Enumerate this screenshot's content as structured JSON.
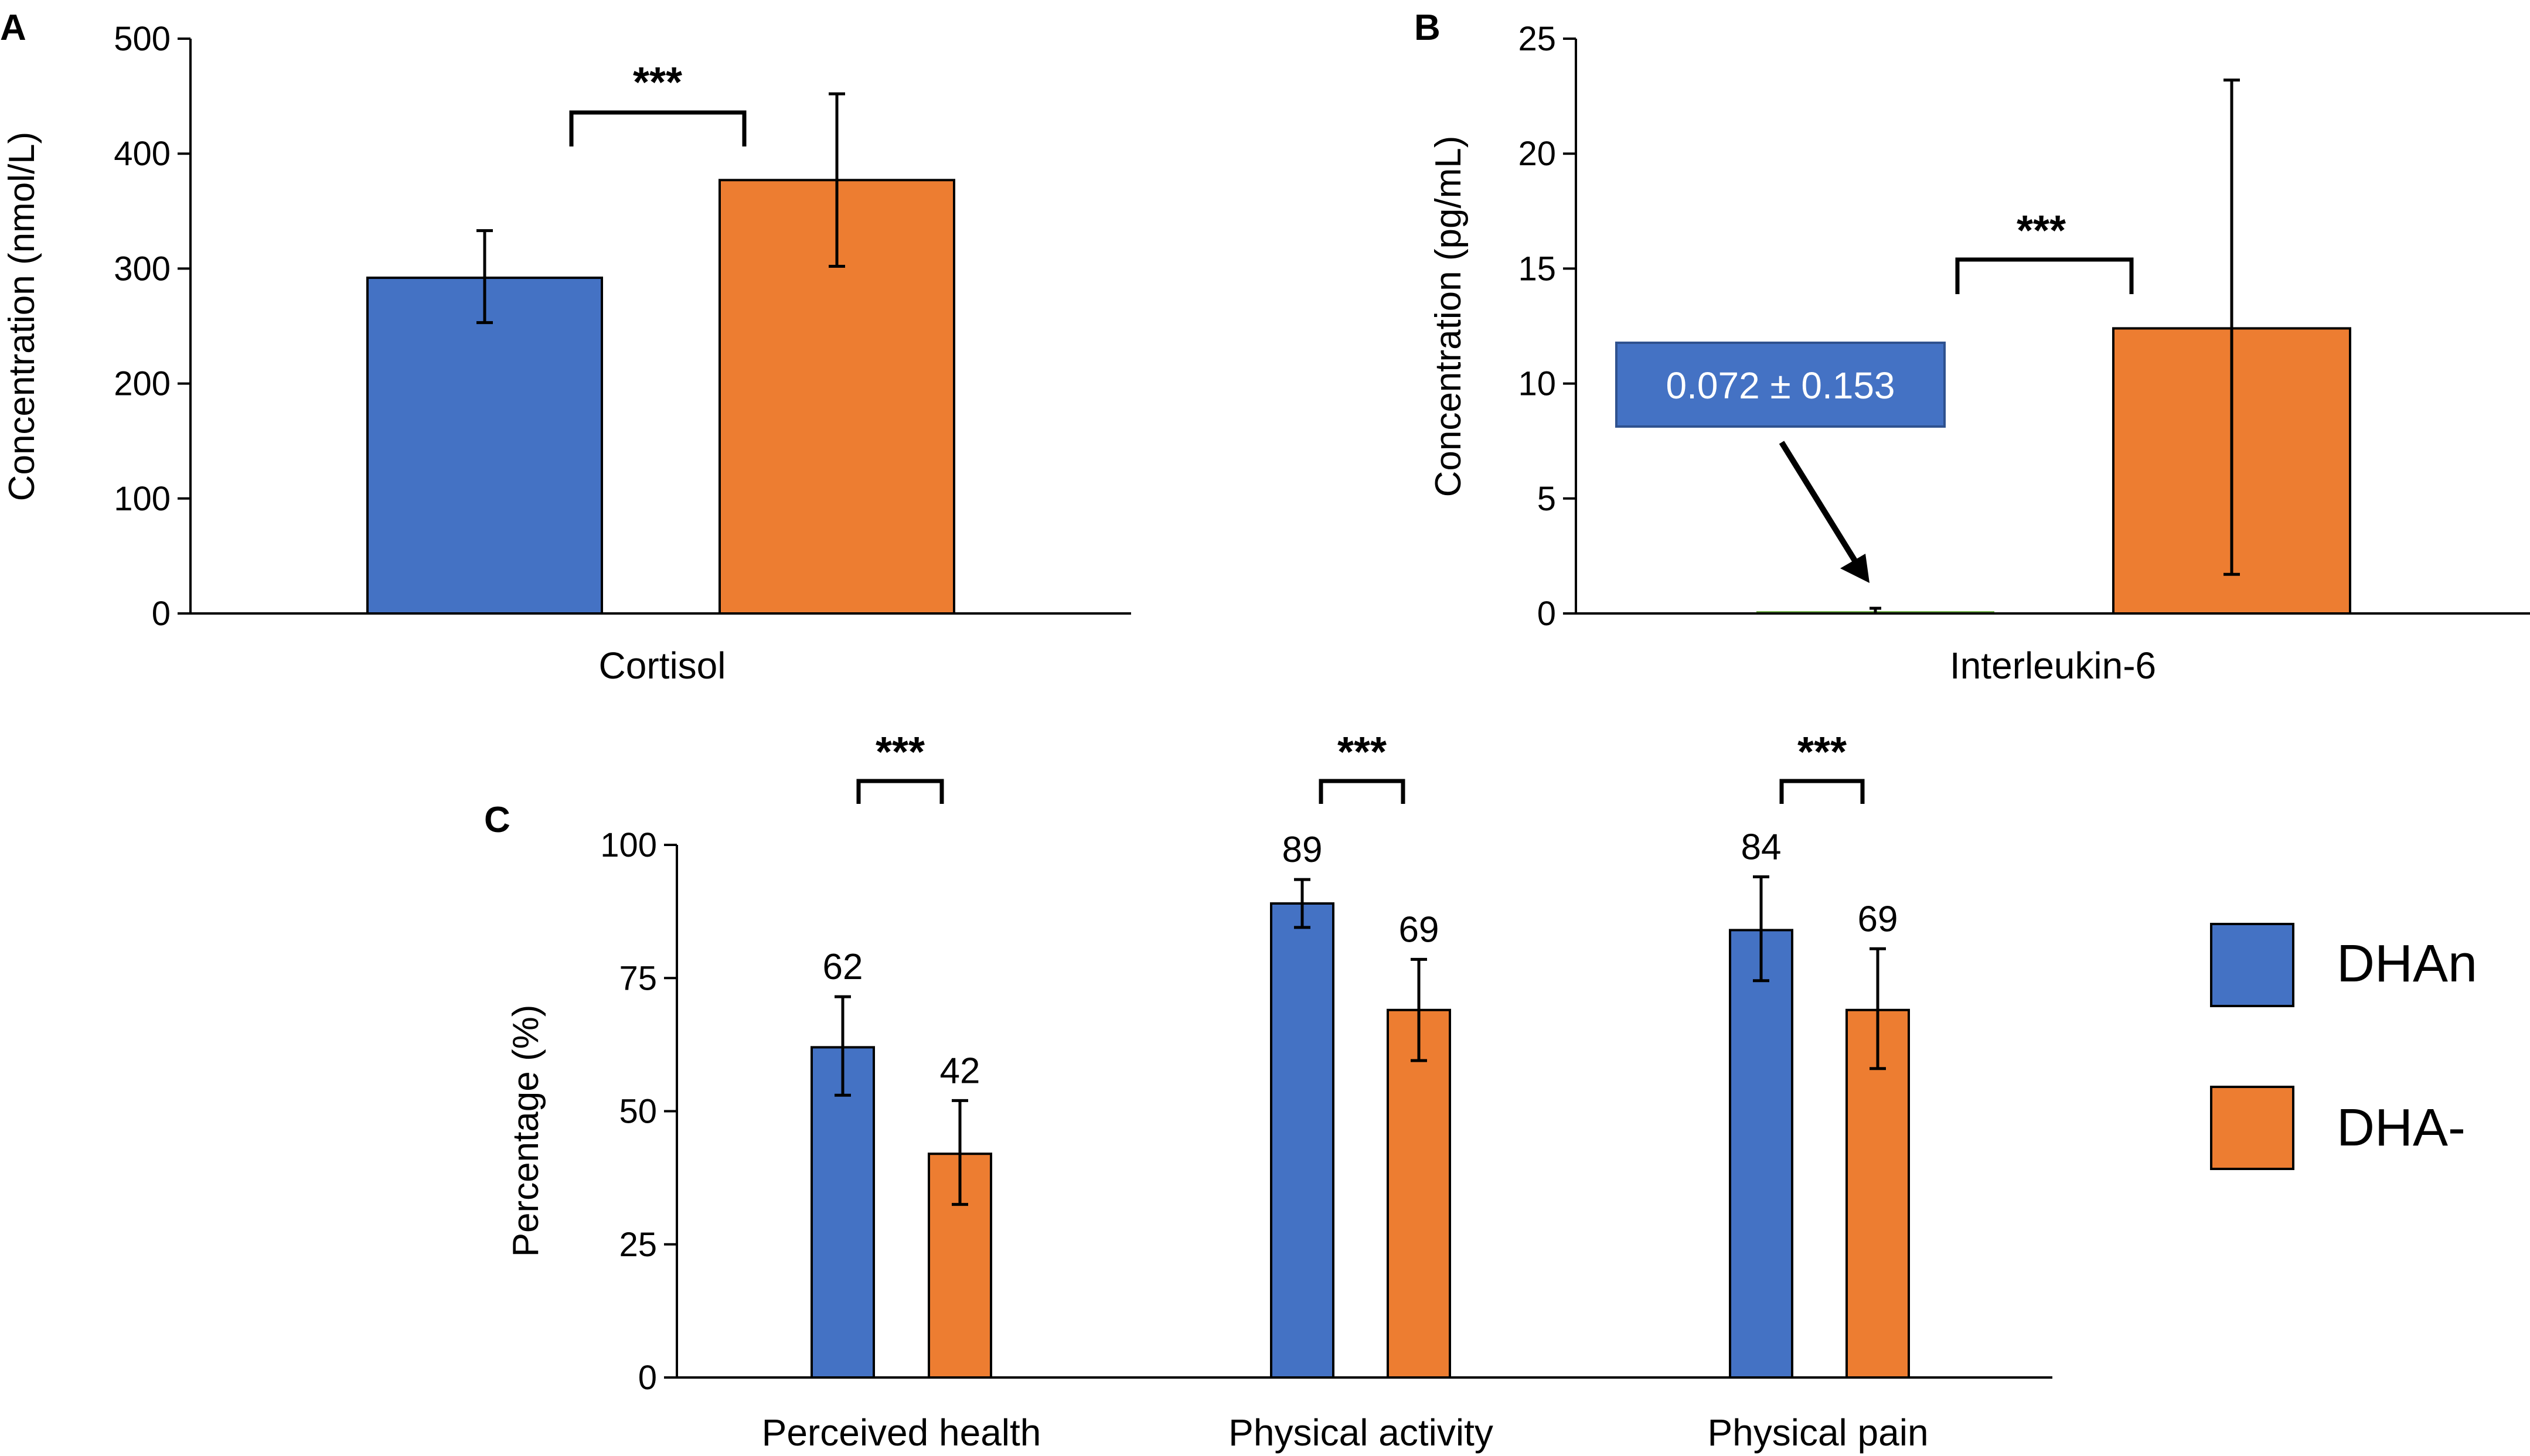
{
  "colors": {
    "DHAn": "#4472C4",
    "DHA-": "#ED7D31",
    "near_zero_bar": "#70AD47",
    "callout_fill": "#4472C4",
    "callout_border": "#2F528F"
  },
  "legend": {
    "items": [
      {
        "label": "DHAn",
        "color": "#4472C4"
      },
      {
        "label": "DHA-",
        "color": "#ED7D31"
      }
    ]
  },
  "chart_data": [
    {
      "panel": "A",
      "type": "bar",
      "categories": [
        "Cortisol"
      ],
      "ylabel": "Concentration (nmol/L)",
      "ylim": [
        0,
        500
      ],
      "yticks": [
        0,
        100,
        200,
        300,
        400,
        500
      ],
      "series": [
        {
          "name": "DHAn",
          "values": [
            292
          ],
          "err_low": [
            253
          ],
          "err_high": [
            333
          ]
        },
        {
          "name": "DHA-",
          "values": [
            377
          ],
          "err_low": [
            302
          ],
          "err_high": [
            452
          ]
        }
      ],
      "significance": "***"
    },
    {
      "panel": "B",
      "type": "bar",
      "categories": [
        "Interleukin-6"
      ],
      "ylabel": "Concentration (pg/mL)",
      "ylim": [
        0,
        25
      ],
      "yticks": [
        0,
        5,
        10,
        15,
        20,
        25
      ],
      "series": [
        {
          "name": "DHAn",
          "values": [
            0.072
          ],
          "err_low": [
            0
          ],
          "err_high": [
            0.225
          ]
        },
        {
          "name": "DHA-",
          "values": [
            12.4
          ],
          "err_low": [
            1.7
          ],
          "err_high": [
            23.2
          ]
        }
      ],
      "annotation": "0.072 ± 0.153",
      "significance": "***"
    },
    {
      "panel": "C",
      "type": "bar",
      "categories": [
        "Perceived health",
        "Physical activity",
        "Physical pain"
      ],
      "ylabel": "Percentage (%)",
      "ylim": [
        0,
        100
      ],
      "yticks": [
        0,
        25,
        50,
        75,
        100
      ],
      "series": [
        {
          "name": "DHAn",
          "values": [
            62,
            89,
            84
          ],
          "labels": [
            "62",
            "89",
            "84"
          ],
          "err_low": [
            53,
            84.5,
            74.5
          ],
          "err_high": [
            71.5,
            93.5,
            94
          ]
        },
        {
          "name": "DHA-",
          "values": [
            42,
            69,
            69
          ],
          "labels": [
            "42",
            "69",
            "69"
          ],
          "err_low": [
            32.5,
            59.5,
            58
          ],
          "err_high": [
            52,
            78.5,
            80.5
          ]
        }
      ],
      "significance": [
        "***",
        "***",
        "***"
      ]
    }
  ]
}
